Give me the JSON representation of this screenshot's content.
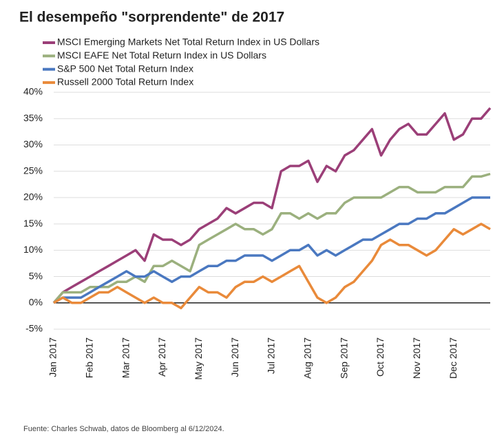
{
  "chart_data": {
    "type": "line",
    "title": "El desempeño \"sorprendente\" de 2017",
    "source": "Fuente: Charles Schwab, datos de Bloomberg al 6/12/2024.",
    "categories": [
      "Jan 2017",
      null,
      null,
      null,
      "Feb 2017",
      null,
      null,
      null,
      "Mar 2017",
      null,
      null,
      null,
      "Apr 2017",
      null,
      null,
      null,
      "May 2017",
      null,
      null,
      null,
      "Jun 2017",
      null,
      null,
      null,
      "Jul 2017",
      null,
      null,
      null,
      "Aug 2017",
      null,
      null,
      null,
      "Sep 2017",
      null,
      null,
      null,
      "Oct 2017",
      null,
      null,
      null,
      "Nov 2017",
      null,
      null,
      null,
      "Dec 2017",
      null,
      null,
      null,
      null
    ],
    "series": [
      {
        "name": "MSCI Emerging Markets Net Total Return Index in US Dollars",
        "color": "#9b3f78",
        "values": [
          0,
          2,
          3,
          4,
          5,
          6,
          7,
          8,
          9,
          10,
          8,
          13,
          12,
          12,
          11,
          12,
          14,
          15,
          16,
          18,
          17,
          18,
          19,
          19,
          18,
          25,
          26,
          26,
          27,
          23,
          26,
          25,
          28,
          29,
          31,
          33,
          28,
          31,
          33,
          34,
          32,
          32,
          34,
          36,
          31,
          32,
          35,
          35,
          37
        ]
      },
      {
        "name": "MSCI EAFE Net Total Return Index in US Dollars",
        "color": "#9bb07e",
        "values": [
          0,
          2,
          2,
          2,
          3,
          3,
          3,
          4,
          4,
          5,
          4,
          7,
          7,
          8,
          7,
          6,
          11,
          12,
          13,
          14,
          15,
          14,
          14,
          13,
          14,
          17,
          17,
          16,
          17,
          16,
          17,
          17,
          19,
          20,
          20,
          20,
          20,
          21,
          22,
          22,
          21,
          21,
          21,
          22,
          22,
          22,
          24,
          24,
          24.5
        ]
      },
      {
        "name": "S&P 500 Net Total Return Index",
        "color": "#4a78c0",
        "values": [
          0,
          1,
          1,
          1,
          2,
          3,
          4,
          5,
          6,
          5,
          5,
          6,
          5,
          4,
          5,
          5,
          6,
          7,
          7,
          8,
          8,
          9,
          9,
          9,
          8,
          9,
          10,
          10,
          11,
          9,
          10,
          9,
          10,
          11,
          12,
          12,
          13,
          14,
          15,
          15,
          16,
          16,
          17,
          17,
          18,
          19,
          20,
          20,
          20
        ]
      },
      {
        "name": "Russell 2000 Total Return Index",
        "color": "#e98a3a",
        "values": [
          0,
          1,
          0,
          0,
          1,
          2,
          2,
          3,
          2,
          1,
          0,
          1,
          0,
          0,
          -1,
          1,
          3,
          2,
          2,
          1,
          3,
          4,
          4,
          5,
          4,
          5,
          6,
          7,
          4,
          1,
          0,
          1,
          3,
          4,
          6,
          8,
          11,
          12,
          11,
          11,
          10,
          9,
          10,
          12,
          14,
          13,
          14,
          15,
          14
        ]
      }
    ],
    "ylim": [
      -5,
      40
    ],
    "yticks": [
      {
        "value": -5,
        "label": "-5%"
      },
      {
        "value": 0,
        "label": "0%"
      },
      {
        "value": 5,
        "label": "5%"
      },
      {
        "value": 10,
        "label": "10%"
      },
      {
        "value": 15,
        "label": "15%"
      },
      {
        "value": 20,
        "label": "20%"
      },
      {
        "value": 25,
        "label": "25%"
      },
      {
        "value": 30,
        "label": "30%"
      },
      {
        "value": 35,
        "label": "35%"
      },
      {
        "value": 40,
        "label": "40%"
      }
    ],
    "grid": true
  }
}
